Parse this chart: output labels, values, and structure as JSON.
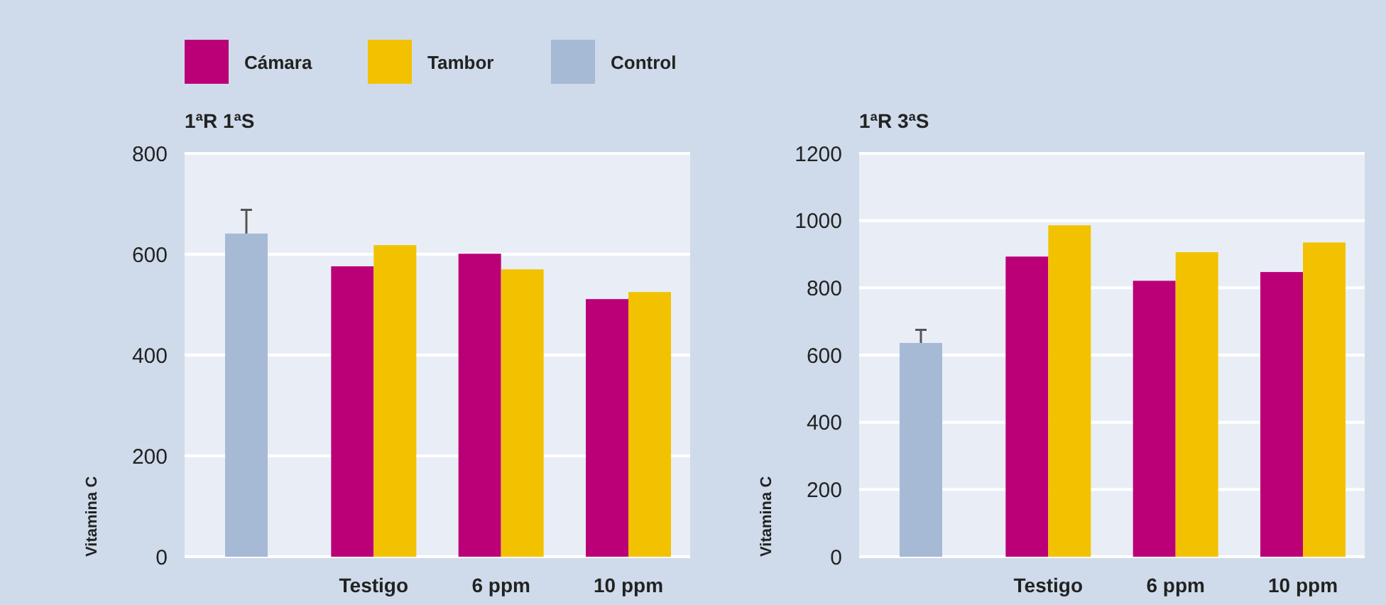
{
  "chart_data": [
    {
      "type": "bar",
      "title": "1ªR 1ªS",
      "ylabel": "Vitamina C",
      "categories": [
        null,
        "Testigo",
        "6 ppm",
        "10 ppm"
      ],
      "series": [
        {
          "name": "Cámara",
          "color": "#bb0077",
          "values": [
            null,
            576,
            601,
            511
          ]
        },
        {
          "name": "Tambor",
          "color": "#f2c200",
          "values": [
            null,
            618,
            570,
            525
          ]
        },
        {
          "name": "Control",
          "color": "#a6bad6",
          "values": [
            641,
            null,
            null,
            null
          ],
          "errors": [
            47,
            null,
            null,
            null
          ]
        }
      ],
      "ylim": [
        0,
        800
      ],
      "yticks": [
        0,
        200,
        400,
        600,
        800
      ],
      "grid": "y",
      "legend": "top"
    },
    {
      "type": "bar",
      "title": "1ªR 3ªS",
      "ylabel": "Vitamina C",
      "categories": [
        null,
        "Testigo",
        "6 ppm",
        "10 ppm"
      ],
      "series": [
        {
          "color": "#bb0077",
          "values": [
            null,
            893,
            821,
            847
          ]
        },
        {
          "color": "#f2c200",
          "values": [
            null,
            986,
            906,
            935
          ]
        },
        {
          "color": "#a6bad6",
          "values": [
            636,
            null,
            null,
            null
          ],
          "errors": [
            39,
            null,
            null,
            null
          ]
        }
      ],
      "ylim": [
        0,
        1200
      ],
      "yticks": [
        0,
        200,
        400,
        600,
        800,
        1000,
        1200
      ],
      "grid": "y"
    }
  ]
}
